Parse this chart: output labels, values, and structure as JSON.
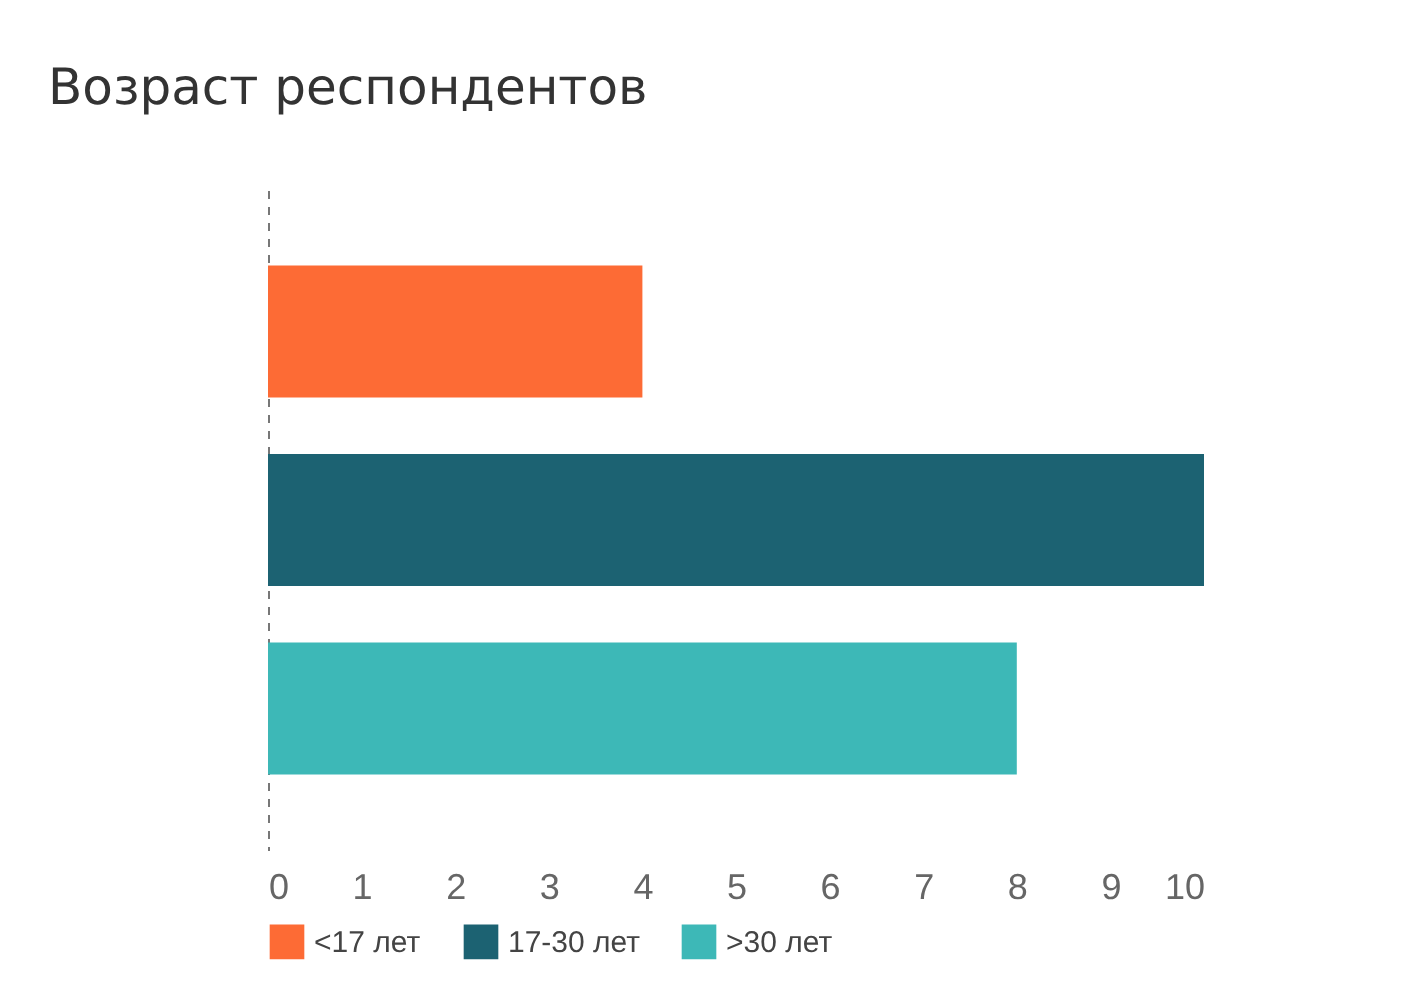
{
  "chart_data": {
    "type": "bar",
    "orientation": "horizontal",
    "title": "Возраст респондентов",
    "categories": [
      null,
      null,
      null
    ],
    "series": [
      {
        "name": "<17 лет",
        "color": "#fd6b35",
        "values": [
          4,
          null,
          null
        ]
      },
      {
        "name": "17-30 лет",
        "color": "#1c6272",
        "values": [
          null,
          10,
          null
        ]
      },
      {
        "name": ">30 лет",
        "color": "#3db8b7",
        "values": [
          null,
          null,
          8
        ]
      }
    ],
    "xlim": [
      0,
      10
    ],
    "xticks": [
      0,
      1,
      2,
      3,
      4,
      5,
      6,
      7,
      8,
      9,
      10
    ],
    "grid": false,
    "legend": "bottom",
    "tick_labels": "x"
  }
}
